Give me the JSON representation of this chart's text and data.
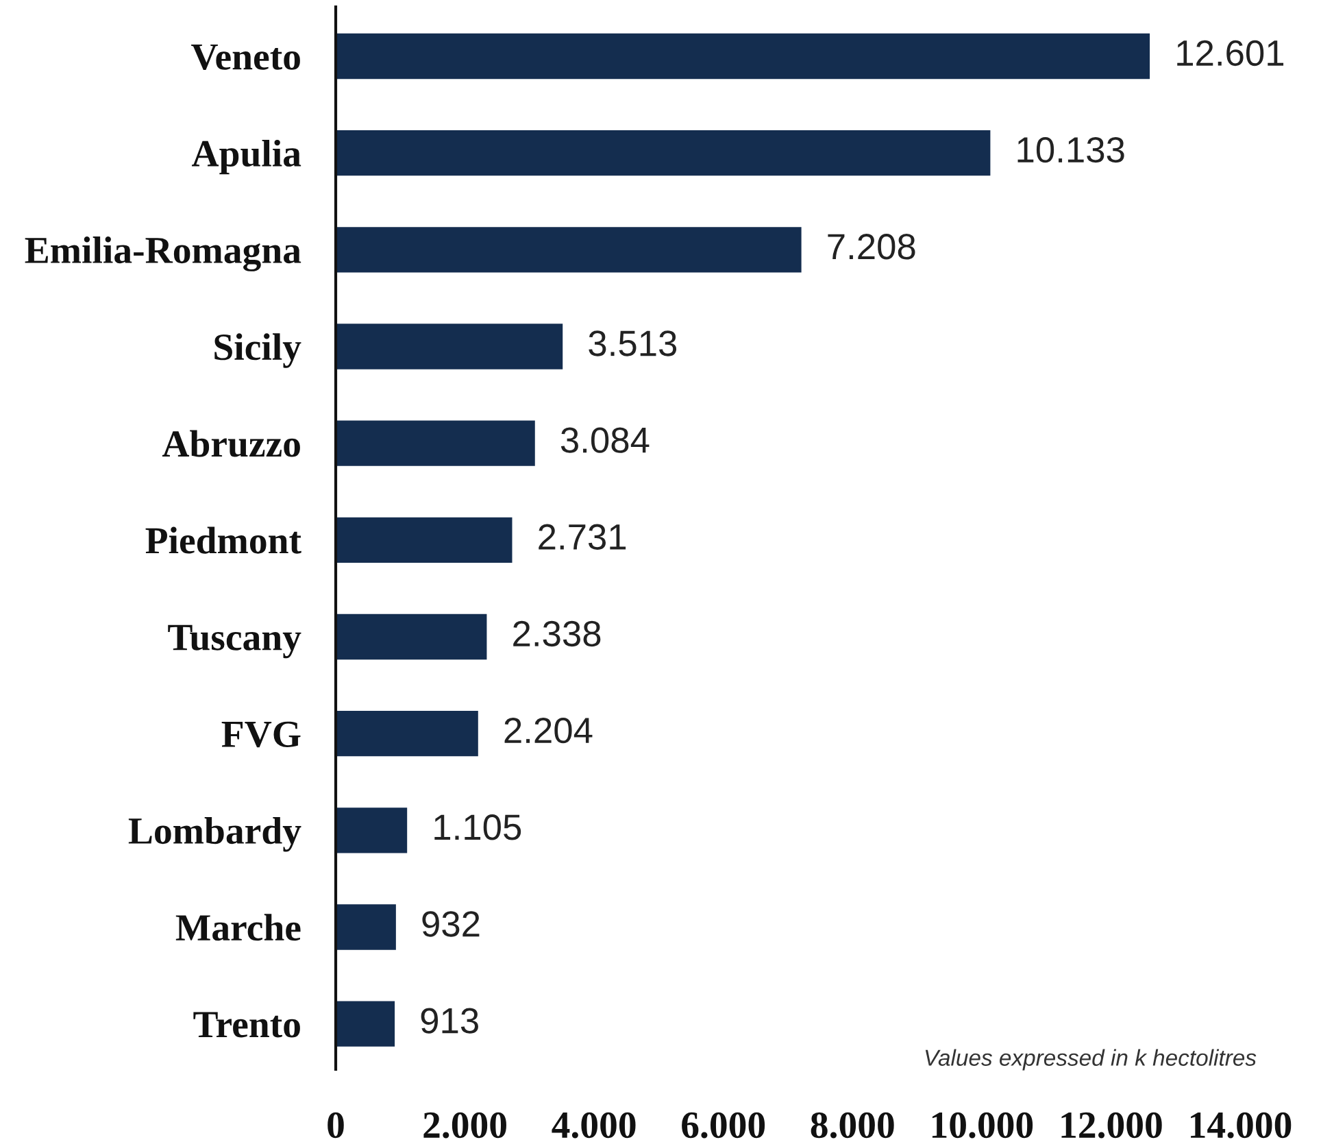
{
  "chart_data": {
    "type": "bar",
    "orientation": "horizontal",
    "categories": [
      "Veneto",
      "Apulia",
      "Emilia-Romagna",
      "Sicily",
      "Abruzzo",
      "Piedmont",
      "Tuscany",
      "FVG",
      "Lombardy",
      "Marche",
      "Trento"
    ],
    "values": [
      12601,
      10133,
      7208,
      3513,
      3084,
      2731,
      2338,
      2204,
      1105,
      932,
      913
    ],
    "value_labels": [
      "12.601",
      "10.133",
      "7.208",
      "3.513",
      "3.084",
      "2.731",
      "2.338",
      "2.204",
      "1.105",
      "932",
      "913"
    ],
    "color": "#142d4f",
    "xlim": [
      0,
      14000
    ],
    "xticks": [
      0,
      {
        "value": 2000,
        "label": "2.000"
      },
      {
        "value": 4000,
        "label": "4.000"
      },
      {
        "value": 6000,
        "label": "6.000"
      },
      {
        "value": 8000,
        "label": "8.000"
      },
      {
        "value": 10000,
        "label": "10.000"
      },
      {
        "value": 12000,
        "label": "12.000"
      },
      {
        "value": 14000,
        "label": "14.000"
      }
    ],
    "annotations": [
      "Values expressed in k hectolitres"
    ]
  }
}
